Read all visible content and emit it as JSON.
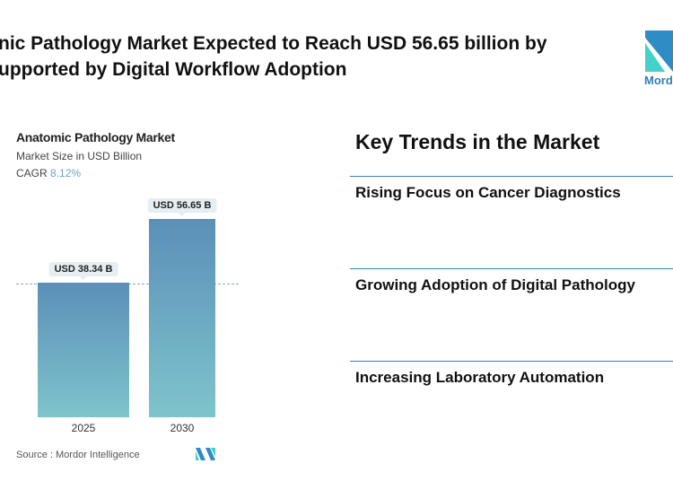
{
  "header": {
    "title_line1": "nic Pathology Market Expected to Reach USD 56.65 billion by",
    "title_line2": "upported by Digital Workflow Adoption",
    "logo_text": "Mordo"
  },
  "chart_data": {
    "type": "bar",
    "title": "Anatomic Pathology Market",
    "subtitle": "Market Size in USD Billion",
    "cagr_label": "CAGR",
    "cagr_value": "8.12%",
    "categories": [
      "2025",
      "2030"
    ],
    "values": [
      38.34,
      56.65
    ],
    "data_labels": [
      "USD 38.34 B",
      "USD 56.65 B"
    ],
    "ylim": [
      0,
      56.65
    ],
    "grid": false,
    "source": "Source :  Mordor Intelligence",
    "colors": {
      "bar_top": "#5b8fb8",
      "bar_bottom": "#7fc4cc",
      "cagr": "#6fa3c8"
    }
  },
  "trends": {
    "title": "Key Trends in the Market",
    "items": [
      "Rising Focus on Cancer Diagnostics",
      "Growing Adoption of Digital Pathology",
      "Increasing Laboratory Automation"
    ]
  }
}
